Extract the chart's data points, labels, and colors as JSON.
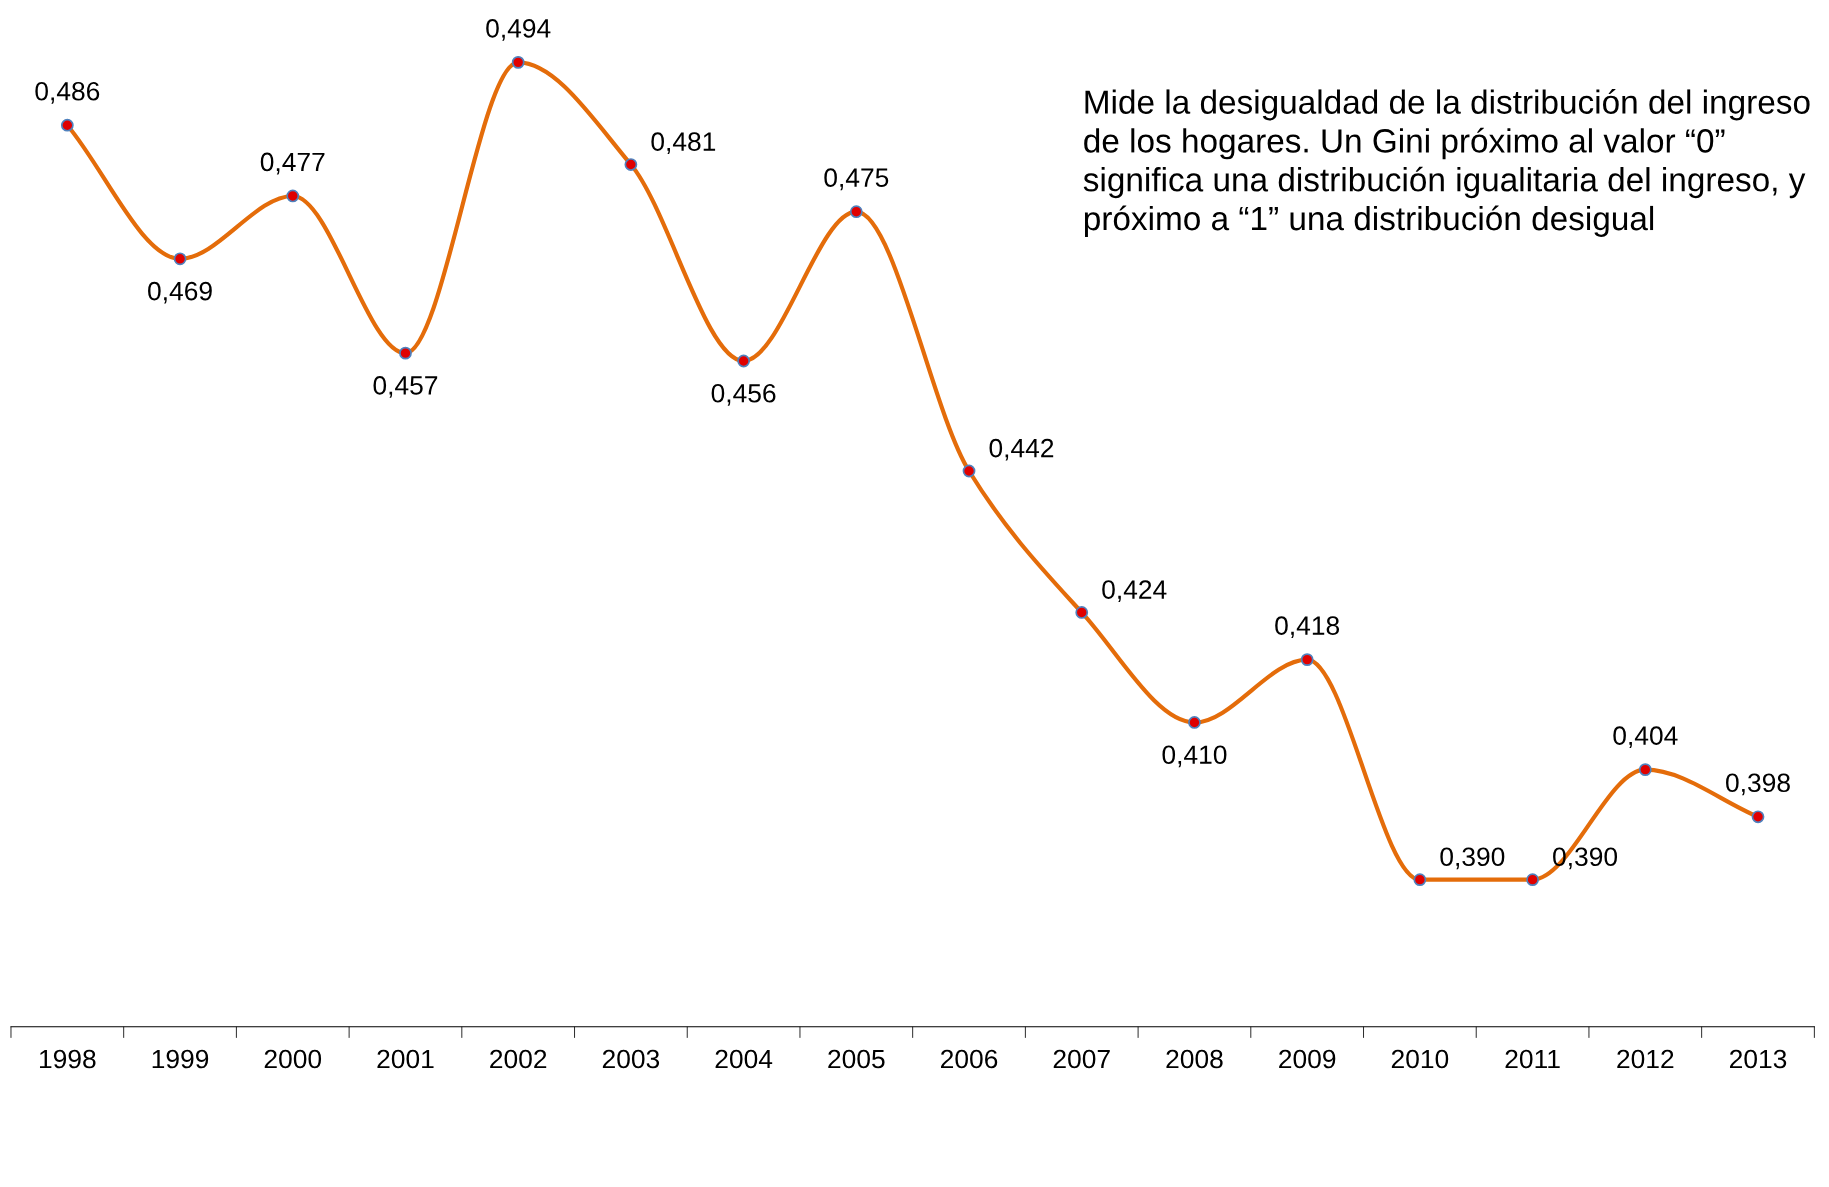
{
  "chart_data": {
    "type": "line",
    "categories": [
      "1998",
      "1999",
      "2000",
      "2001",
      "2002",
      "2003",
      "2004",
      "2005",
      "2006",
      "2007",
      "2008",
      "2009",
      "2010",
      "2011",
      "2012",
      "2013"
    ],
    "series": [
      {
        "color": "#e46c0a",
        "values": [
          0.486,
          0.469,
          0.477,
          0.457,
          0.494,
          0.481,
          0.456,
          0.475,
          0.442,
          0.424,
          0.41,
          0.418,
          0.39,
          0.39,
          0.404,
          0.398
        ],
        "value_labels": [
          "0,486",
          "0,469",
          "0,477",
          "0,457",
          "0,494",
          "0,481",
          "0,456",
          "0,475",
          "0,442",
          "0,424",
          "0,410",
          "0,418",
          "0,390",
          "0,390",
          "0,404",
          "0,398"
        ]
      }
    ],
    "tick_labels": "x",
    "marker": "circle",
    "line_style": "solid",
    "annotations": [
      "Mide la desigualdad de la distribución del ingreso de los hogares. Un Gini próximo al valor “0” significa una distribución igualitaria del ingreso, y próximo a “1” una distribución desigual"
    ]
  }
}
